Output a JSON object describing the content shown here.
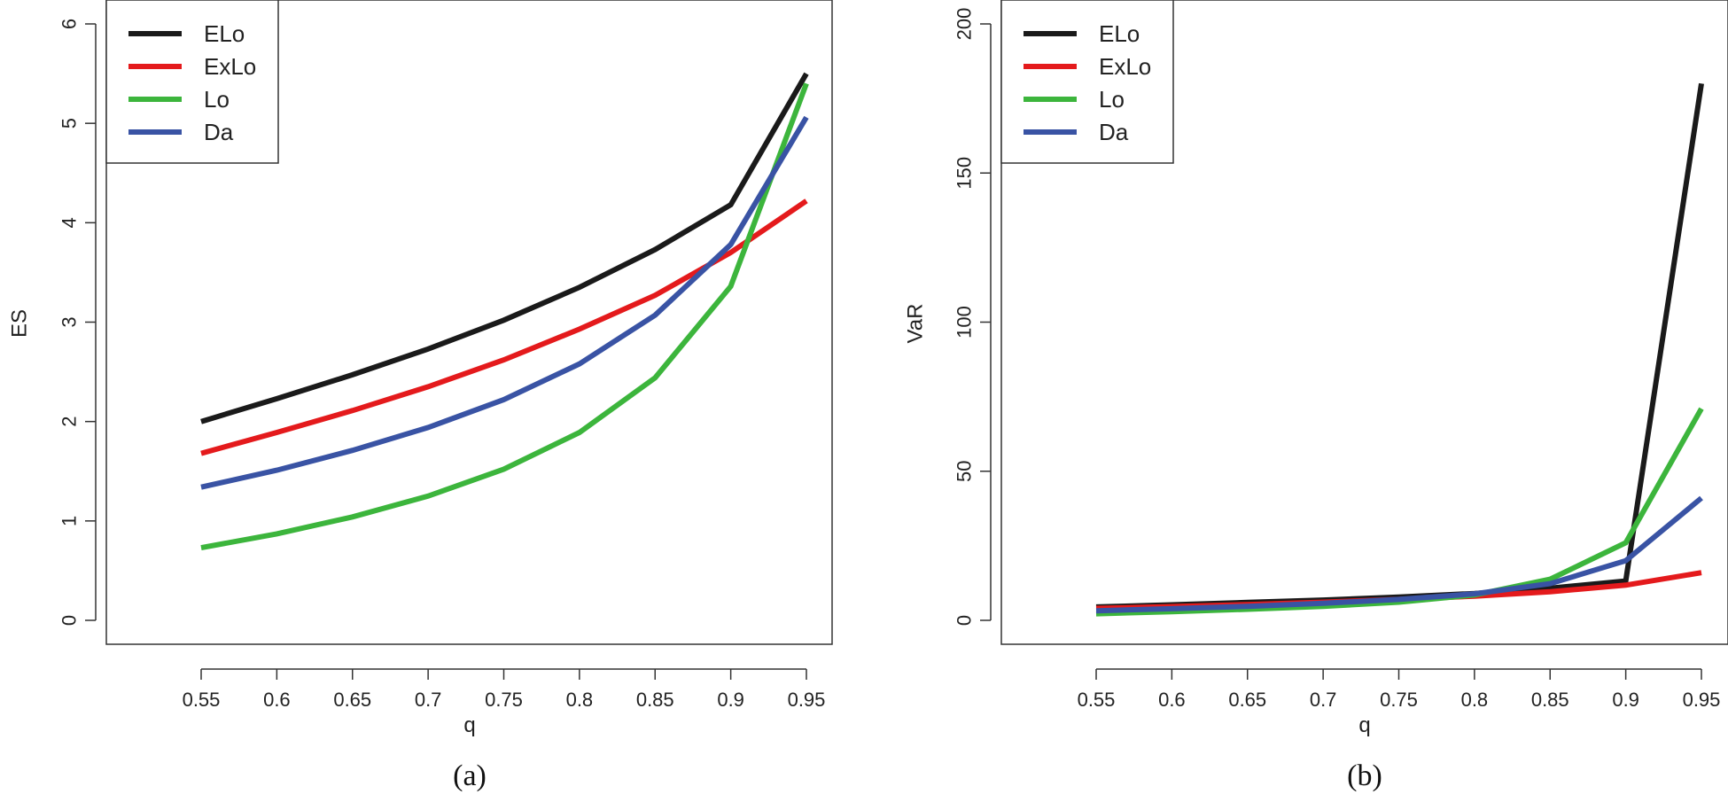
{
  "chart_data": [
    {
      "type": "line",
      "panel": "(a)",
      "xlabel": "q",
      "ylabel": "ES",
      "x": [
        0.55,
        0.6,
        0.65,
        0.7,
        0.75,
        0.8,
        0.85,
        0.9,
        0.95
      ],
      "x_tick_labels": [
        "0.55",
        "0.6",
        "0.65",
        "0.7",
        "0.75",
        "0.8",
        "0.85",
        "0.9",
        "0.95"
      ],
      "ylim": [
        0,
        6
      ],
      "y_ticks": [
        0,
        1,
        2,
        3,
        4,
        5,
        6
      ],
      "y_tick_labels": [
        "0",
        "1",
        "2",
        "3",
        "4",
        "5",
        "6"
      ],
      "legend_position": "top-left",
      "series": [
        {
          "name": "ELo",
          "color": "#1a1a1a",
          "values": [
            2.0,
            2.23,
            2.47,
            2.73,
            3.02,
            3.35,
            3.73,
            4.18,
            5.5
          ]
        },
        {
          "name": "ExLo",
          "color": "#e41a1c",
          "values": [
            1.68,
            1.89,
            2.11,
            2.35,
            2.62,
            2.93,
            3.27,
            3.7,
            4.22
          ]
        },
        {
          "name": "Lo",
          "color": "#3cb53c",
          "values": [
            0.73,
            0.87,
            1.04,
            1.25,
            1.52,
            1.89,
            2.44,
            3.36,
            5.4
          ]
        },
        {
          "name": "Da",
          "color": "#3953a4",
          "values": [
            1.34,
            1.51,
            1.71,
            1.94,
            2.22,
            2.58,
            3.07,
            3.78,
            5.06
          ]
        }
      ]
    },
    {
      "type": "line",
      "panel": "(b)",
      "xlabel": "q",
      "ylabel": "VaR",
      "x": [
        0.55,
        0.6,
        0.65,
        0.7,
        0.75,
        0.8,
        0.85,
        0.9,
        0.95
      ],
      "x_tick_labels": [
        "0.55",
        "0.6",
        "0.65",
        "0.7",
        "0.75",
        "0.8",
        "0.85",
        "0.9",
        "0.95"
      ],
      "ylim": [
        0,
        200
      ],
      "y_ticks": [
        0,
        50,
        100,
        150,
        200
      ],
      "y_tick_labels": [
        "0",
        "50",
        "100",
        "150",
        "200"
      ],
      "legend_position": "top-left",
      "series": [
        {
          "name": "ELo",
          "color": "#1a1a1a",
          "values": [
            4.5,
            5.2,
            6.0,
            6.8,
            7.8,
            9.0,
            10.8,
            13.2,
            180
          ]
        },
        {
          "name": "ExLo",
          "color": "#e41a1c",
          "values": [
            4.0,
            4.6,
            5.3,
            6.1,
            7.0,
            8.1,
            9.6,
            11.8,
            16
          ]
        },
        {
          "name": "Lo",
          "color": "#3cb53c",
          "values": [
            2.2,
            2.9,
            3.7,
            4.7,
            6.1,
            8.5,
            13.8,
            26,
            71
          ]
        },
        {
          "name": "Da",
          "color": "#3953a4",
          "values": [
            3.2,
            3.9,
            4.7,
            5.7,
            7.0,
            8.9,
            12.3,
            20,
            41
          ]
        }
      ]
    }
  ]
}
